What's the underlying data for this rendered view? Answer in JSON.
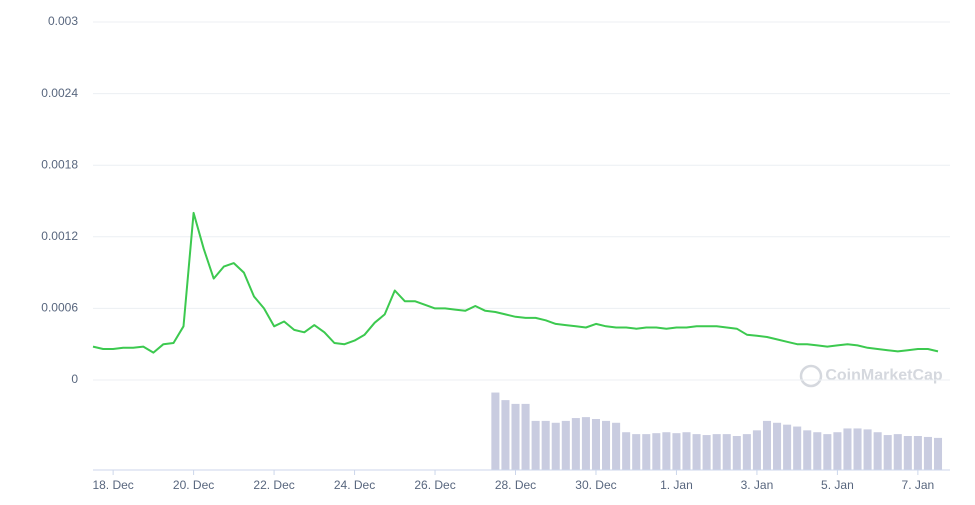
{
  "chart_data": {
    "type": "line",
    "watermark": "CoinMarketCap",
    "categories": [
      null,
      null,
      "18. Dec",
      null,
      null,
      null,
      null,
      null,
      null,
      null,
      "20. Dec",
      null,
      null,
      null,
      null,
      null,
      null,
      null,
      "22. Dec",
      null,
      null,
      null,
      null,
      null,
      null,
      null,
      "24. Dec",
      null,
      null,
      null,
      null,
      null,
      null,
      null,
      "26. Dec",
      null,
      null,
      null,
      null,
      null,
      null,
      null,
      "28. Dec",
      null,
      null,
      null,
      null,
      null,
      null,
      null,
      "30. Dec",
      null,
      null,
      null,
      null,
      null,
      null,
      null,
      "1. Jan",
      null,
      null,
      null,
      null,
      null,
      null,
      null,
      "3. Jan",
      null,
      null,
      null,
      null,
      null,
      null,
      null,
      "5. Jan",
      null,
      null,
      null,
      null,
      null,
      null,
      null,
      "7. Jan",
      null,
      null
    ],
    "series": [
      {
        "color": "#3cc94f",
        "values": [
          0.00028,
          0.00026,
          0.00026,
          0.00027,
          0.00027,
          0.00028,
          0.00023,
          0.0003,
          0.00031,
          0.00045,
          0.0014,
          0.0011,
          0.00085,
          0.00095,
          0.00098,
          0.0009,
          0.0007,
          0.0006,
          0.00045,
          0.00049,
          0.00042,
          0.0004,
          0.00046,
          0.0004,
          0.00031,
          0.0003,
          0.00033,
          0.00038,
          0.00048,
          0.00055,
          0.00075,
          0.00066,
          0.00066,
          0.00063,
          0.0006,
          0.0006,
          0.00059,
          0.00058,
          0.00062,
          0.00058,
          0.00057,
          0.00055,
          0.00053,
          0.00052,
          0.00052,
          0.0005,
          0.00047,
          0.00046,
          0.00045,
          0.00044,
          0.00047,
          0.00045,
          0.00044,
          0.00044,
          0.00043,
          0.00044,
          0.00044,
          0.00043,
          0.00044,
          0.00044,
          0.00045,
          0.00045,
          0.00045,
          0.00044,
          0.00043,
          0.00038,
          0.00037,
          0.00036,
          0.00034,
          0.00032,
          0.0003,
          0.0003,
          0.00029,
          0.00028,
          0.00029,
          0.0003,
          0.00029,
          0.00027,
          0.00026,
          0.00025,
          0.00024,
          0.00025,
          0.00026,
          0.00026,
          0.00024
        ]
      },
      {
        "color": "#c9cce0",
        "values": [
          null,
          null,
          null,
          null,
          null,
          null,
          null,
          null,
          null,
          null,
          null,
          null,
          null,
          null,
          null,
          null,
          null,
          null,
          null,
          null,
          null,
          null,
          null,
          null,
          null,
          null,
          null,
          null,
          null,
          null,
          null,
          null,
          null,
          null,
          null,
          null,
          null,
          null,
          null,
          null,
          82,
          74,
          70,
          70,
          52,
          52,
          50,
          52,
          55,
          56,
          54,
          52,
          50,
          40,
          38,
          38,
          39,
          40,
          39,
          40,
          38,
          37,
          38,
          38,
          36,
          38,
          42,
          52,
          50,
          48,
          46,
          42,
          40,
          38,
          40,
          44,
          44,
          43,
          40,
          37,
          38,
          36,
          36,
          35,
          34
        ]
      }
    ],
    "ylim": [
      0,
      0.003
    ],
    "yticks": [
      0,
      0.0006,
      0.0012,
      0.0018,
      0.0024,
      0.003
    ],
    "vlim": [
      0,
      90
    ],
    "grid": true
  }
}
